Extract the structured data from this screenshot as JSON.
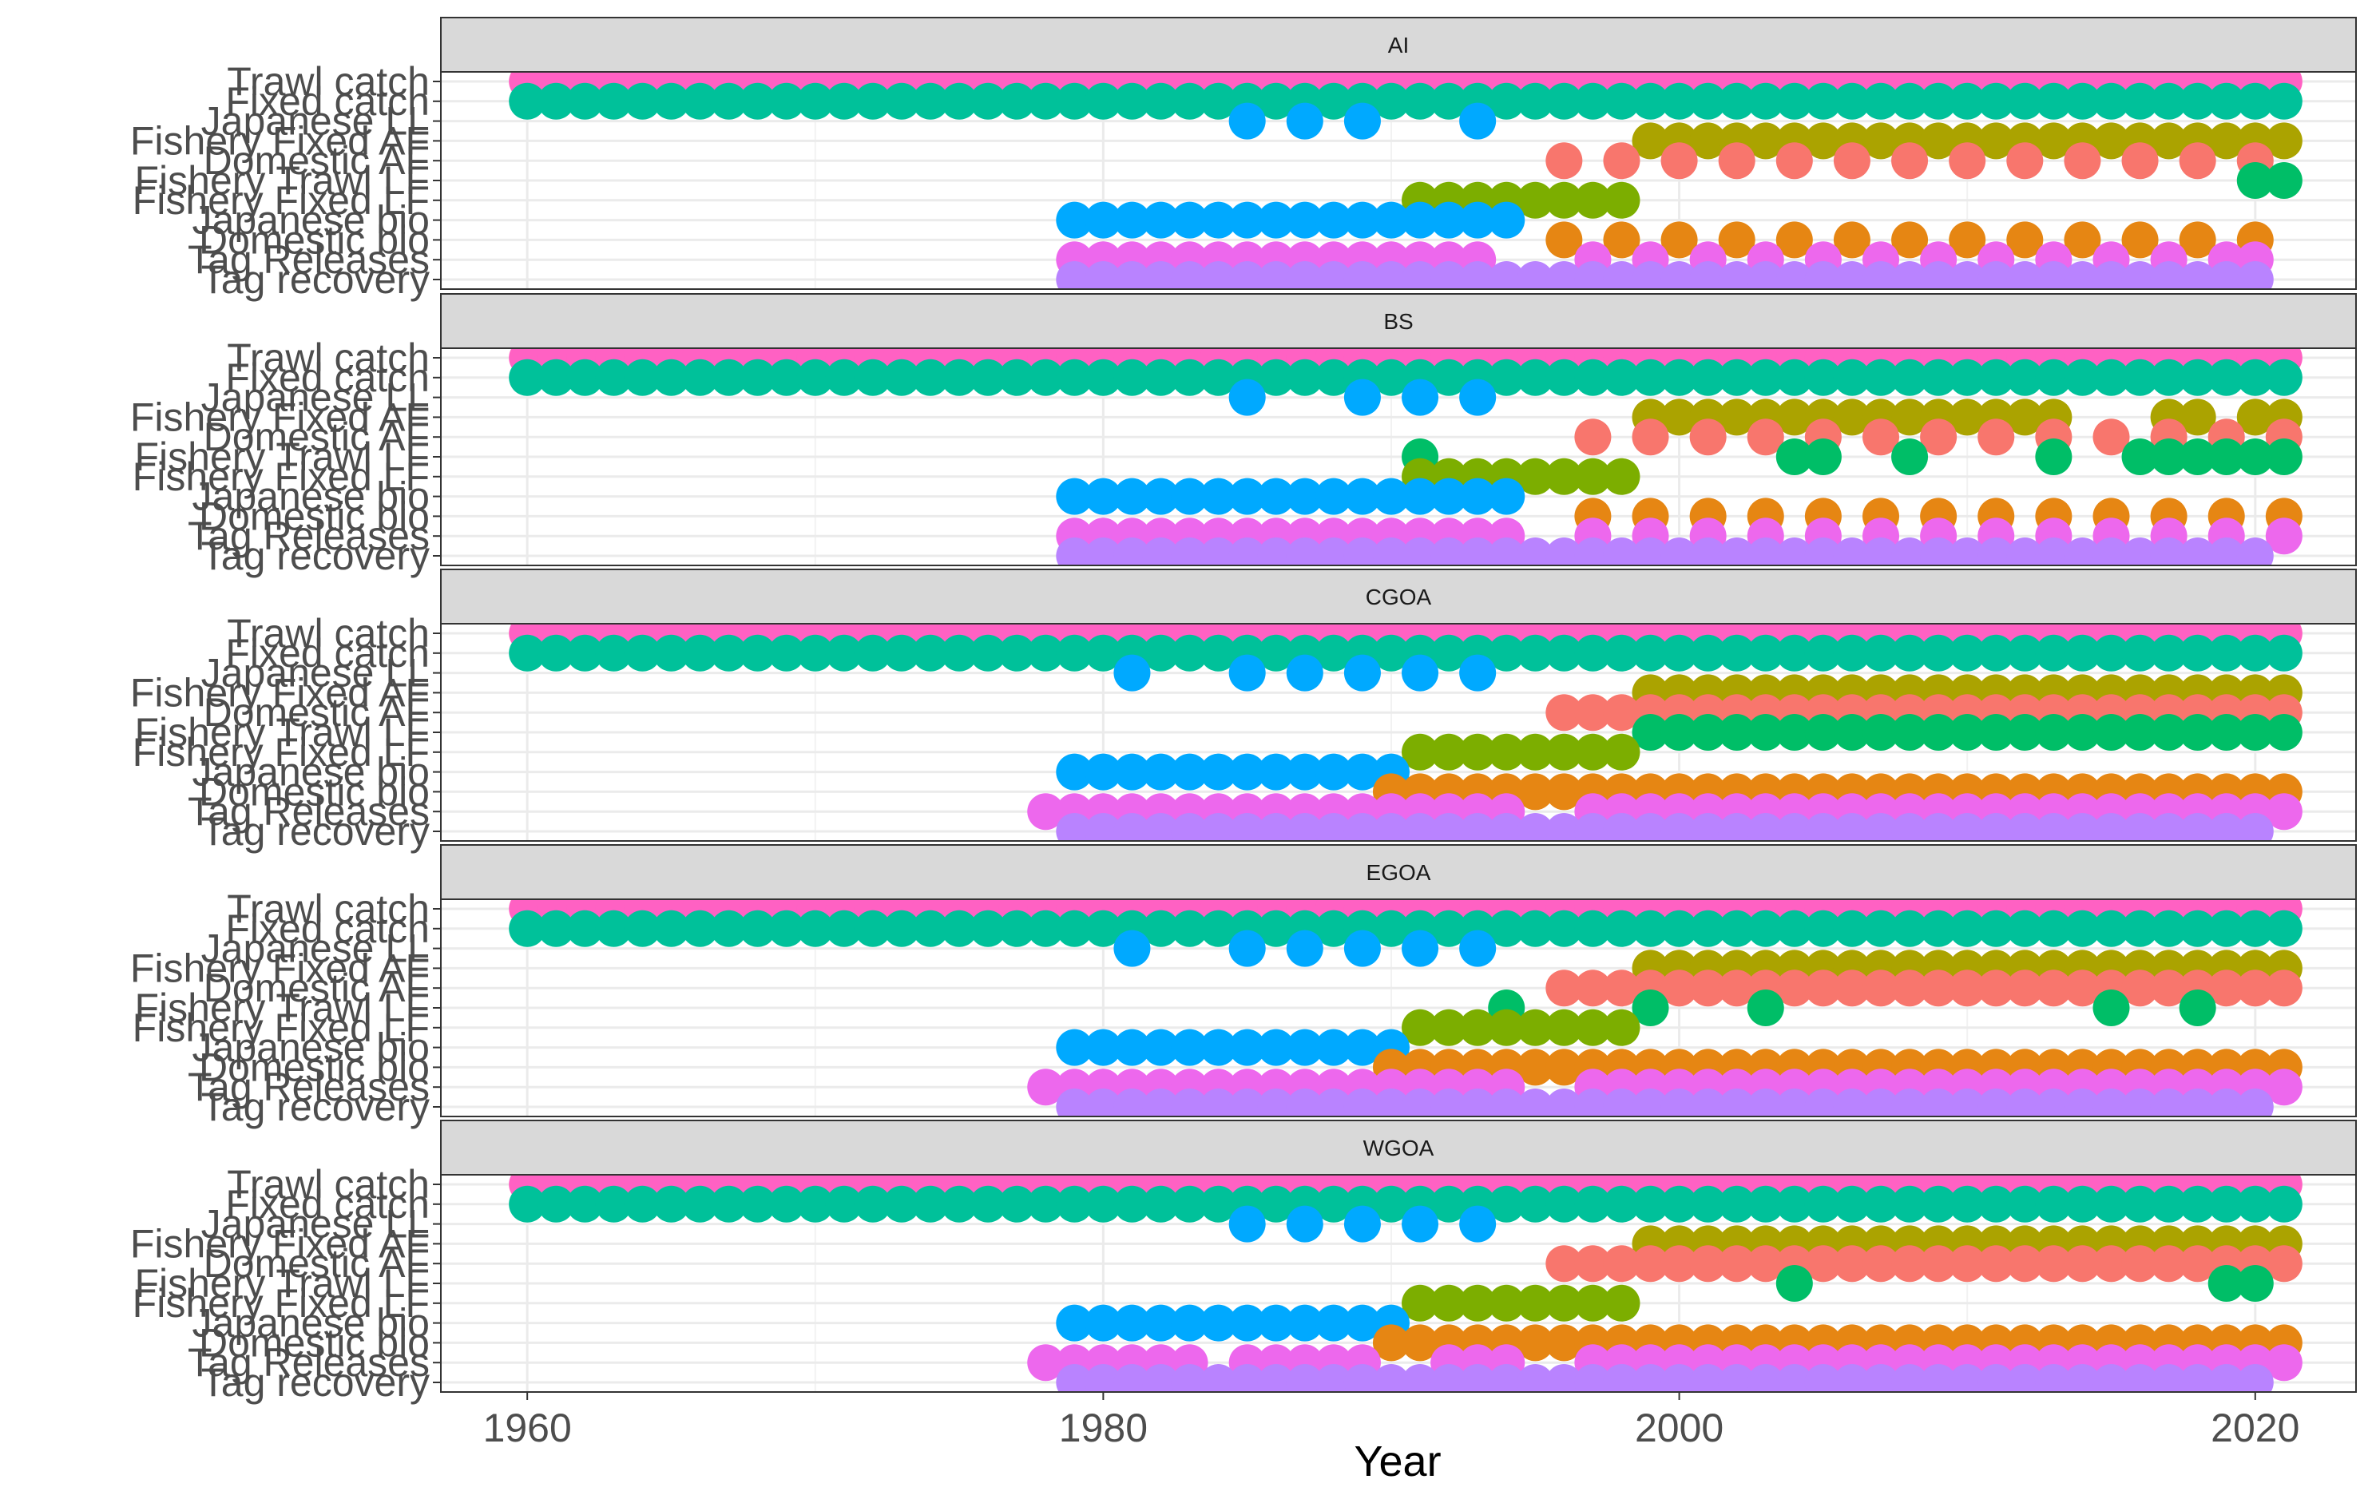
{
  "chart_data": {
    "type": "scatter",
    "xlabel": "Year",
    "ylabel": "",
    "x_ticks": [
      1960,
      1980,
      2000,
      2020
    ],
    "xlim": [
      1957,
      2023.5
    ],
    "categories": [
      "Trawl catch",
      "Fixed catch",
      "Japanese LL",
      "Fishery Fixed AF",
      "Domestic AF",
      "Fishery Trawl LF",
      "Fishery Fixed LF",
      "Japanese bio",
      "Domestic bio",
      "Tag Releases",
      "Tag recovery"
    ],
    "colors": {
      "Trawl catch": "#FF61C3",
      "Fixed catch": "#00C19A",
      "Japanese LL": "#00A9FF",
      "Fishery Fixed AF": "#ABA300",
      "Domestic AF": "#F8766D",
      "Fishery Trawl LF": "#00BE67",
      "Fishery Fixed LF": "#7CAE00",
      "Japanese bio": "#00A9FF",
      "Domestic bio": "#E68613",
      "Tag Releases": "#ED68ED",
      "Tag recovery": "#B983FF"
    },
    "panels": [
      {
        "name": "AI",
        "series": [
          {
            "name": "Trawl catch",
            "years": "1960-2021"
          },
          {
            "name": "Fixed catch",
            "years": "1960-2021"
          },
          {
            "name": "Japanese LL",
            "years": "1985,1987,1989,1993"
          },
          {
            "name": "Fishery Fixed AF",
            "years": "1999-2021"
          },
          {
            "name": "Domestic AF",
            "years": "1996,1998,2000,2002,2004,2006,2008,2010,2012,2014,2016,2018,2020"
          },
          {
            "name": "Fishery Trawl LF",
            "years": "2020,2021"
          },
          {
            "name": "Fishery Fixed LF",
            "years": "1991-1998"
          },
          {
            "name": "Japanese bio",
            "years": "1979-1994"
          },
          {
            "name": "Domestic bio",
            "years": "1996,1998,2000,2002,2004,2006,2008,2010,2012,2014,2016,2018,2020"
          },
          {
            "name": "Tag Releases",
            "years": "1979-1991,1992,1993,1997,1999,2001,2003,2005,2007,2009,2011,2013,2015,2017,2019,2020"
          },
          {
            "name": "Tag recovery",
            "years": "1979-2020"
          }
        ]
      },
      {
        "name": "BS",
        "series": [
          {
            "name": "Trawl catch",
            "years": "1960-2021"
          },
          {
            "name": "Fixed catch",
            "years": "1960-2021"
          },
          {
            "name": "Japanese LL",
            "years": "1985,1989,1991,1993"
          },
          {
            "name": "Fishery Fixed AF",
            "years": "1999-2013,2017,2018,2020,2021"
          },
          {
            "name": "Domestic AF",
            "years": "1997,1999,2001,2003,2005,2007,2009,2011,2013,2015,2017,2019,2021"
          },
          {
            "name": "Fishery Trawl LF",
            "years": "1991,2004,2005,2008,2013,2016,2017,2018,2019,2020,2021"
          },
          {
            "name": "Fishery Fixed LF",
            "years": "1991-1998"
          },
          {
            "name": "Japanese bio",
            "years": "1979-1994"
          },
          {
            "name": "Domestic bio",
            "years": "1997,1999,2001,2003,2005,2007,2009,2011,2013,2015,2017,2019,2021"
          },
          {
            "name": "Tag Releases",
            "years": "1979-1991,1992,1993,1994,1997,1999,2001,2003,2005,2007,2009,2011,2013,2015,2017,2019,2021"
          },
          {
            "name": "Tag recovery",
            "years": "1979-2020"
          }
        ]
      },
      {
        "name": "CGOA",
        "series": [
          {
            "name": "Trawl catch",
            "years": "1960-2021"
          },
          {
            "name": "Fixed catch",
            "years": "1960-2021"
          },
          {
            "name": "Japanese LL",
            "years": "1981,1985,1987,1989,1991,1993"
          },
          {
            "name": "Fishery Fixed AF",
            "years": "1999-2021"
          },
          {
            "name": "Domestic AF",
            "years": "1996-2021"
          },
          {
            "name": "Fishery Trawl LF",
            "years": "1999-2021"
          },
          {
            "name": "Fishery Fixed LF",
            "years": "1991-1998"
          },
          {
            "name": "Japanese bio",
            "years": "1979-1990"
          },
          {
            "name": "Domestic bio",
            "years": "1990-2021"
          },
          {
            "name": "Tag Releases",
            "years": "1978-1994,1997-2021"
          },
          {
            "name": "Tag recovery",
            "years": "1979-2020"
          }
        ]
      },
      {
        "name": "EGOA",
        "series": [
          {
            "name": "Trawl catch",
            "years": "1960-2021"
          },
          {
            "name": "Fixed catch",
            "years": "1960-2021"
          },
          {
            "name": "Japanese LL",
            "years": "1981,1985,1987,1989,1991,1993"
          },
          {
            "name": "Fishery Fixed AF",
            "years": "1999-2021"
          },
          {
            "name": "Domestic AF",
            "years": "1996-2021"
          },
          {
            "name": "Fishery Trawl LF",
            "years": "1994,1999,2003,2015,2018"
          },
          {
            "name": "Fishery Fixed LF",
            "years": "1991-1998"
          },
          {
            "name": "Japanese bio",
            "years": "1979-1990"
          },
          {
            "name": "Domestic bio",
            "years": "1990-2021"
          },
          {
            "name": "Tag Releases",
            "years": "1978-1994,1997-2021"
          },
          {
            "name": "Tag recovery",
            "years": "1979-2020"
          }
        ]
      },
      {
        "name": "WGOA",
        "series": [
          {
            "name": "Trawl catch",
            "years": "1960-2021"
          },
          {
            "name": "Fixed catch",
            "years": "1960-2021"
          },
          {
            "name": "Japanese LL",
            "years": "1985,1987,1989,1991,1993"
          },
          {
            "name": "Fishery Fixed AF",
            "years": "1999-2021"
          },
          {
            "name": "Domestic AF",
            "years": "1996-2021"
          },
          {
            "name": "Fishery Trawl LF",
            "years": "2004,2019,2020"
          },
          {
            "name": "Fishery Fixed LF",
            "years": "1991-1998"
          },
          {
            "name": "Japanese bio",
            "years": "1979-1990"
          },
          {
            "name": "Domestic bio",
            "years": "1990-2021"
          },
          {
            "name": "Tag Releases",
            "years": "1978-1983,1985-1989,1992-1994,1997-2021"
          },
          {
            "name": "Tag recovery",
            "years": "1979-2020"
          }
        ]
      }
    ],
    "grid": true,
    "legend": "none"
  }
}
